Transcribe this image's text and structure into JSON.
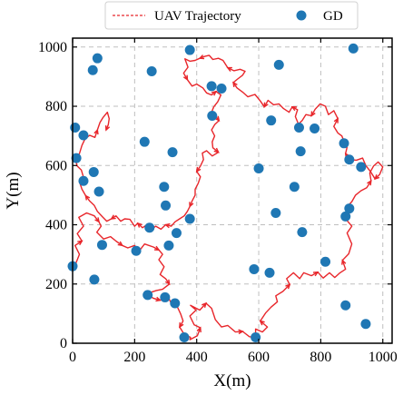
{
  "chart_data": {
    "type": "scatter",
    "title": "",
    "xlabel": "X(m)",
    "ylabel": "Y(m)",
    "xlim": [
      0,
      1030
    ],
    "ylim": [
      0,
      1030
    ],
    "xticks": [
      0,
      200,
      400,
      600,
      800,
      1000
    ],
    "yticks": [
      0,
      200,
      400,
      600,
      800,
      1000
    ],
    "grid": true,
    "legend": {
      "placement": "top-center",
      "entries": [
        {
          "label": "UAV Trajectory",
          "style": "dashed-line",
          "color": "#e8262b"
        },
        {
          "label": "GD",
          "style": "marker",
          "color": "#1f77b4"
        }
      ]
    },
    "colors": {
      "trajectory": "#e8262b",
      "gd": "#1f77b4",
      "grid": "#bfbfbf"
    },
    "gd_points": [
      [
        0,
        260
      ],
      [
        8,
        728
      ],
      [
        12,
        625
      ],
      [
        35,
        702
      ],
      [
        35,
        548
      ],
      [
        65,
        922
      ],
      [
        68,
        578
      ],
      [
        70,
        215
      ],
      [
        80,
        962
      ],
      [
        85,
        512
      ],
      [
        95,
        332
      ],
      [
        205,
        312
      ],
      [
        232,
        680
      ],
      [
        242,
        163
      ],
      [
        248,
        390
      ],
      [
        255,
        918
      ],
      [
        295,
        528
      ],
      [
        298,
        155
      ],
      [
        300,
        465
      ],
      [
        310,
        330
      ],
      [
        322,
        645
      ],
      [
        330,
        135
      ],
      [
        335,
        372
      ],
      [
        360,
        20
      ],
      [
        378,
        990
      ],
      [
        378,
        420
      ],
      [
        448,
        868
      ],
      [
        450,
        768
      ],
      [
        480,
        860
      ],
      [
        585,
        250
      ],
      [
        590,
        20
      ],
      [
        600,
        590
      ],
      [
        635,
        238
      ],
      [
        640,
        752
      ],
      [
        655,
        440
      ],
      [
        665,
        940
      ],
      [
        715,
        528
      ],
      [
        730,
        728
      ],
      [
        735,
        648
      ],
      [
        740,
        375
      ],
      [
        780,
        725
      ],
      [
        815,
        275
      ],
      [
        875,
        675
      ],
      [
        880,
        428
      ],
      [
        880,
        128
      ],
      [
        892,
        620
      ],
      [
        892,
        455
      ],
      [
        905,
        995
      ],
      [
        930,
        595
      ],
      [
        945,
        65
      ]
    ],
    "trajectory": [
      [
        5,
        255
      ],
      [
        22,
        300
      ],
      [
        8,
        330
      ],
      [
        30,
        345
      ],
      [
        15,
        370
      ],
      [
        35,
        395
      ],
      [
        20,
        425
      ],
      [
        45,
        440
      ],
      [
        70,
        430
      ],
      [
        85,
        410
      ],
      [
        92,
        395
      ],
      [
        78,
        375
      ],
      [
        100,
        352
      ],
      [
        122,
        360
      ],
      [
        140,
        345
      ],
      [
        160,
        330
      ],
      [
        178,
        322
      ],
      [
        200,
        330
      ],
      [
        215,
        312
      ],
      [
        232,
        335
      ],
      [
        260,
        325
      ],
      [
        278,
        315
      ],
      [
        290,
        300
      ],
      [
        278,
        282
      ],
      [
        295,
        258
      ],
      [
        282,
        232
      ],
      [
        300,
        218
      ],
      [
        312,
        200
      ],
      [
        290,
        182
      ],
      [
        270,
        178
      ],
      [
        252,
        172
      ],
      [
        242,
        163
      ],
      [
        260,
        152
      ],
      [
        282,
        145
      ],
      [
        305,
        162
      ],
      [
        318,
        135
      ],
      [
        338,
        122
      ],
      [
        348,
        100
      ],
      [
        356,
        75
      ],
      [
        345,
        55
      ],
      [
        360,
        30
      ],
      [
        380,
        20
      ],
      [
        378,
        12
      ],
      [
        378,
        12
      ],
      [
        402,
        25
      ],
      [
        412,
        52
      ],
      [
        392,
        62
      ],
      [
        378,
        92
      ],
      [
        398,
        112
      ],
      [
        380,
        128
      ],
      [
        410,
        112
      ],
      [
        430,
        135
      ],
      [
        448,
        118
      ],
      [
        460,
        80
      ],
      [
        480,
        55
      ],
      [
        500,
        60
      ],
      [
        525,
        38
      ],
      [
        548,
        40
      ],
      [
        570,
        22
      ],
      [
        590,
        20
      ],
      [
        590,
        48
      ],
      [
        612,
        38
      ],
      [
        628,
        55
      ],
      [
        605,
        75
      ],
      [
        622,
        102
      ],
      [
        640,
        122
      ],
      [
        660,
        140
      ],
      [
        655,
        160
      ],
      [
        678,
        175
      ],
      [
        700,
        198
      ],
      [
        690,
        218
      ],
      [
        712,
        238
      ],
      [
        732,
        218
      ],
      [
        745,
        238
      ],
      [
        770,
        228
      ],
      [
        790,
        240
      ],
      [
        808,
        220
      ],
      [
        828,
        238
      ],
      [
        845,
        222
      ],
      [
        862,
        238
      ],
      [
        880,
        250
      ],
      [
        870,
        280
      ],
      [
        890,
        302
      ],
      [
        900,
        335
      ],
      [
        885,
        372
      ],
      [
        900,
        395
      ],
      [
        880,
        420
      ],
      [
        892,
        438
      ],
      [
        880,
        455
      ],
      [
        900,
        478
      ],
      [
        912,
        500
      ],
      [
        930,
        515
      ],
      [
        948,
        525
      ],
      [
        962,
        548
      ],
      [
        958,
        575
      ],
      [
        970,
        598
      ],
      [
        985,
        612
      ],
      [
        1000,
        595
      ],
      [
        990,
        570
      ],
      [
        975,
        555
      ],
      [
        960,
        580
      ],
      [
        945,
        600
      ],
      [
        935,
        625
      ],
      [
        915,
        618
      ],
      [
        892,
        620
      ],
      [
        880,
        640
      ],
      [
        885,
        662
      ],
      [
        875,
        682
      ],
      [
        868,
        700
      ],
      [
        855,
        710
      ],
      [
        842,
        732
      ],
      [
        855,
        758
      ],
      [
        842,
        785
      ],
      [
        825,
        772
      ],
      [
        815,
        800
      ],
      [
        798,
        808
      ],
      [
        782,
        790
      ],
      [
        770,
        768
      ],
      [
        752,
        772
      ],
      [
        740,
        752
      ],
      [
        728,
        740
      ],
      [
        718,
        765
      ],
      [
        725,
        788
      ],
      [
        708,
        798
      ],
      [
        698,
        780
      ],
      [
        680,
        792
      ],
      [
        665,
        808
      ],
      [
        648,
        805
      ],
      [
        630,
        820
      ],
      [
        618,
        798
      ],
      [
        605,
        818
      ],
      [
        588,
        840
      ],
      [
        565,
        832
      ],
      [
        548,
        848
      ],
      [
        530,
        862
      ],
      [
        518,
        880
      ],
      [
        532,
        892
      ],
      [
        548,
        905
      ],
      [
        556,
        918
      ],
      [
        540,
        925
      ],
      [
        520,
        920
      ],
      [
        500,
        930
      ],
      [
        485,
        955
      ],
      [
        470,
        962
      ],
      [
        452,
        958
      ],
      [
        440,
        972
      ],
      [
        425,
        968
      ],
      [
        410,
        962
      ],
      [
        395,
        955
      ],
      [
        378,
        952
      ],
      [
        362,
        960
      ],
      [
        372,
        932
      ],
      [
        358,
        912
      ],
      [
        370,
        890
      ],
      [
        385,
        868
      ],
      [
        400,
        875
      ],
      [
        420,
        862
      ],
      [
        432,
        845
      ],
      [
        448,
        838
      ],
      [
        462,
        850
      ],
      [
        478,
        838
      ],
      [
        468,
        815
      ],
      [
        455,
        798
      ],
      [
        448,
        780
      ],
      [
        460,
        768
      ],
      [
        472,
        752
      ],
      [
        458,
        738
      ],
      [
        448,
        720
      ],
      [
        458,
        700
      ],
      [
        450,
        680
      ],
      [
        452,
        660
      ],
      [
        470,
        645
      ],
      [
        450,
        632
      ],
      [
        432,
        650
      ],
      [
        418,
        642
      ],
      [
        422,
        620
      ],
      [
        412,
        598
      ],
      [
        400,
        580
      ],
      [
        412,
        562
      ],
      [
        405,
        540
      ],
      [
        395,
        520
      ],
      [
        395,
        500
      ],
      [
        385,
        480
      ],
      [
        378,
        462
      ],
      [
        370,
        445
      ],
      [
        360,
        430
      ],
      [
        345,
        420
      ],
      [
        330,
        410
      ],
      [
        318,
        395
      ],
      [
        300,
        400
      ],
      [
        285,
        385
      ],
      [
        268,
        395
      ],
      [
        255,
        385
      ],
      [
        240,
        400
      ],
      [
        225,
        390
      ],
      [
        210,
        405
      ],
      [
        200,
        395
      ],
      [
        185,
        418
      ],
      [
        168,
        420
      ],
      [
        155,
        412
      ],
      [
        140,
        430
      ],
      [
        125,
        420
      ],
      [
        110,
        412
      ],
      [
        95,
        428
      ],
      [
        80,
        445
      ],
      [
        70,
        465
      ],
      [
        55,
        480
      ],
      [
        42,
        498
      ],
      [
        30,
        520
      ],
      [
        22,
        545
      ],
      [
        35,
        560
      ],
      [
        28,
        585
      ],
      [
        15,
        598
      ],
      [
        8,
        625
      ],
      [
        22,
        640
      ],
      [
        30,
        668
      ],
      [
        40,
        690
      ],
      [
        55,
        702
      ],
      [
        72,
        695
      ],
      [
        80,
        720
      ],
      [
        88,
        745
      ],
      [
        98,
        762
      ],
      [
        112,
        780
      ],
      [
        118,
        758
      ],
      [
        115,
        738
      ],
      [
        108,
        720
      ]
    ]
  }
}
